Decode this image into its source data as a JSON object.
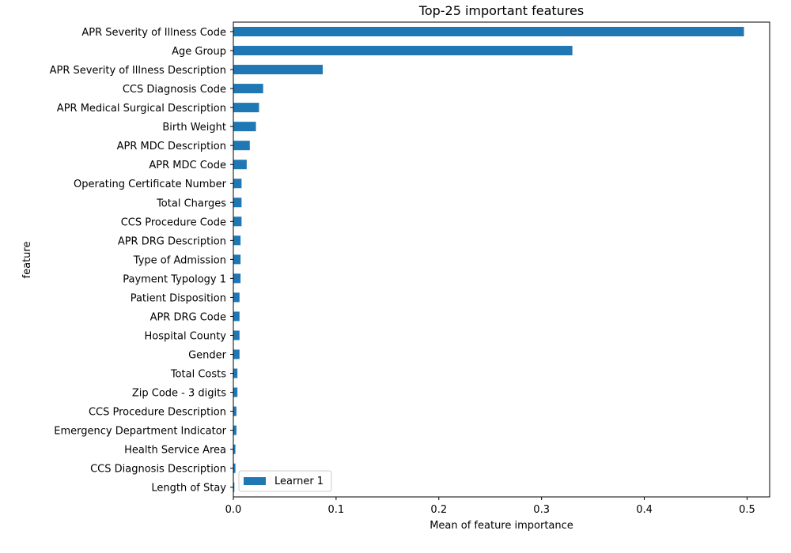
{
  "chart_data": {
    "type": "bar",
    "orientation": "horizontal",
    "title": "Top-25 important features",
    "xlabel": "Mean of feature importance",
    "ylabel": "feature",
    "xlim": [
      0,
      0.522
    ],
    "xticks": [
      0.0,
      0.1,
      0.2,
      0.3,
      0.4,
      0.5
    ],
    "xtick_labels": [
      "0.0",
      "0.1",
      "0.2",
      "0.3",
      "0.4",
      "0.5"
    ],
    "grid": false,
    "legend_position": "lower-left",
    "bar_color": "#1f77b4",
    "categories": [
      "APR Severity of Illness Code",
      "Age Group",
      "APR Severity of Illness Description",
      "CCS Diagnosis Code",
      "APR Medical Surgical Description",
      "Birth Weight",
      "APR MDC Description",
      "APR MDC Code",
      "Operating Certificate Number",
      "Total Charges",
      "CCS Procedure Code",
      "APR DRG Description",
      "Type of Admission",
      "Payment Typology 1",
      "Patient Disposition",
      "APR DRG Code",
      "Hospital County",
      "Gender",
      "Total Costs",
      "Zip Code - 3 digits",
      "CCS Procedure Description",
      "Emergency Department Indicator",
      "Health Service Area",
      "CCS Diagnosis Description",
      "Length of Stay"
    ],
    "series": [
      {
        "name": "Learner 1",
        "values": [
          0.497,
          0.33,
          0.087,
          0.029,
          0.025,
          0.022,
          0.016,
          0.013,
          0.008,
          0.008,
          0.008,
          0.007,
          0.007,
          0.007,
          0.006,
          0.006,
          0.006,
          0.006,
          0.004,
          0.004,
          0.003,
          0.003,
          0.002,
          0.002,
          0.001
        ]
      }
    ]
  }
}
